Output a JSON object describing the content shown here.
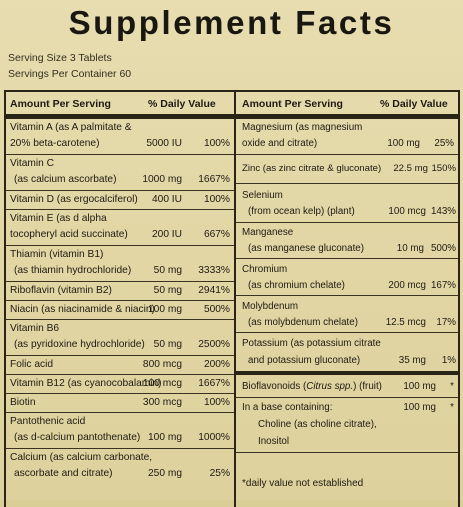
{
  "title": "Supplement Facts",
  "serving_size": "Serving Size 3 Tablets",
  "servings_per_container": "Servings Per Container 60",
  "header": {
    "amount_per_serving": "Amount Per Serving",
    "daily_value": "% Daily Value"
  },
  "left_rows": [
    {
      "line1": "Vitamin A (as A palmitate &",
      "line2": "20% beta-carotene)",
      "amount": "5000 IU",
      "dv": "100%"
    },
    {
      "line1": "Vitamin C",
      "line2": "(as calcium ascorbate)",
      "amount": "1000 mg",
      "dv": "1667%"
    },
    {
      "line1": "Vitamin D (as ergocalciferol)",
      "line2": "",
      "amount": "400 IU",
      "dv": "100%"
    },
    {
      "line1": "Vitamin E (as d alpha",
      "line2": "tocopheryl acid succinate)",
      "amount": "200 IU",
      "dv": "667%"
    },
    {
      "line1": "Thiamin (vitamin B1)",
      "line2": "(as thiamin hydrochloride)",
      "amount": "50 mg",
      "dv": "3333%"
    },
    {
      "line1": "Riboflavin (vitamin B2)",
      "line2": "",
      "amount": "50 mg",
      "dv": "2941%"
    },
    {
      "line1": "Niacin (as niacinamide & niacin)",
      "line2": "",
      "amount": "100 mg",
      "dv": "500%"
    },
    {
      "line1": "Vitamin B6",
      "line2": "(as pyridoxine hydrochloride)",
      "amount": "50 mg",
      "dv": "2500%"
    },
    {
      "line1": "Folic acid",
      "line2": "",
      "amount": "800 mcg",
      "dv": "200%"
    },
    {
      "line1": "Vitamin B12 (as cyanocobalamin)",
      "line2": "",
      "amount": "100 mcg",
      "dv": "1667%"
    },
    {
      "line1": "Biotin",
      "line2": "",
      "amount": "300 mcg",
      "dv": "100%"
    },
    {
      "line1": "Pantothenic acid",
      "line2": "(as d-calcium pantothenate)",
      "amount": "100 mg",
      "dv": "1000%"
    },
    {
      "line1": "Calcium (as calcium carbonate,",
      "line2": "ascorbate and citrate)",
      "amount": "250 mg",
      "dv": "25%"
    }
  ],
  "right_rows": [
    {
      "line1": "Magnesium (as magnesium",
      "line2": "oxide and citrate)",
      "amount": "100 mg",
      "dv": "25%"
    },
    {
      "line1": "Zinc (as zinc citrate & gluconate)",
      "line2": "",
      "amount": "22.5 mg",
      "dv": "150%"
    },
    {
      "line1": "Selenium",
      "line2": "(from ocean kelp) (plant)",
      "amount": "100 mcg",
      "dv": "143%"
    },
    {
      "line1": "Manganese",
      "line2": "(as manganese gluconate)",
      "amount": "10 mg",
      "dv": "500%"
    },
    {
      "line1": "Chromium",
      "line2": "(as chromium chelate)",
      "amount": "200 mcg",
      "dv": "167%"
    },
    {
      "line1": "Molybdenum",
      "line2": "(as molybdenum chelate)",
      "amount": "12.5 mcg",
      "dv": "17%"
    },
    {
      "line1": "Potassium (as potassium citrate",
      "line2": "and potassium gluconate)",
      "amount": "35 mg",
      "dv": "1%"
    }
  ],
  "bioflavonoids": {
    "name": "Bioflavonoids (",
    "name_italic": "Citrus spp.",
    "name_end": ") (fruit)",
    "amount": "100 mg",
    "dv": "*"
  },
  "base": {
    "line1": "In a base containing:",
    "line2": "Choline (as choline citrate),",
    "line3": "Inositol",
    "amount": "100 mg",
    "dv": "*"
  },
  "footnote": "*daily value not established"
}
